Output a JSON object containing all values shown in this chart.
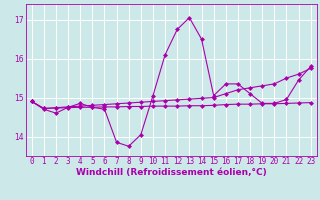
{
  "xlabel": "Windchill (Refroidissement éolien,°C)",
  "bg_color": "#cce8e8",
  "grid_color": "#ffffff",
  "line_color": "#aa00aa",
  "x": [
    0,
    1,
    2,
    3,
    4,
    5,
    6,
    7,
    8,
    9,
    10,
    11,
    12,
    13,
    14,
    15,
    16,
    17,
    18,
    19,
    20,
    21,
    22,
    23
  ],
  "line1": [
    14.9,
    14.7,
    14.6,
    14.75,
    14.85,
    14.75,
    14.7,
    13.85,
    13.75,
    14.05,
    15.05,
    16.1,
    16.75,
    17.05,
    16.5,
    15.05,
    15.35,
    15.35,
    15.1,
    14.85,
    14.85,
    14.95,
    15.45,
    15.8
  ],
  "line2": [
    14.9,
    14.72,
    14.74,
    14.76,
    14.78,
    14.8,
    14.82,
    14.84,
    14.86,
    14.88,
    14.9,
    14.92,
    14.94,
    14.96,
    14.98,
    15.0,
    15.1,
    15.2,
    15.25,
    15.3,
    15.35,
    15.5,
    15.6,
    15.75
  ],
  "line3": [
    14.9,
    14.72,
    14.73,
    14.74,
    14.75,
    14.75,
    14.76,
    14.76,
    14.77,
    14.77,
    14.78,
    14.78,
    14.78,
    14.79,
    14.79,
    14.8,
    14.82,
    14.83,
    14.83,
    14.84,
    14.84,
    14.85,
    14.86,
    14.87
  ],
  "ylim": [
    13.5,
    17.4
  ],
  "yticks": [
    14,
    15,
    16,
    17
  ],
  "xticks": [
    0,
    1,
    2,
    3,
    4,
    5,
    6,
    7,
    8,
    9,
    10,
    11,
    12,
    13,
    14,
    15,
    16,
    17,
    18,
    19,
    20,
    21,
    22,
    23
  ],
  "markersize": 2.0,
  "linewidth": 0.8,
  "tick_fontsize": 5.5,
  "label_fontsize": 6.5
}
